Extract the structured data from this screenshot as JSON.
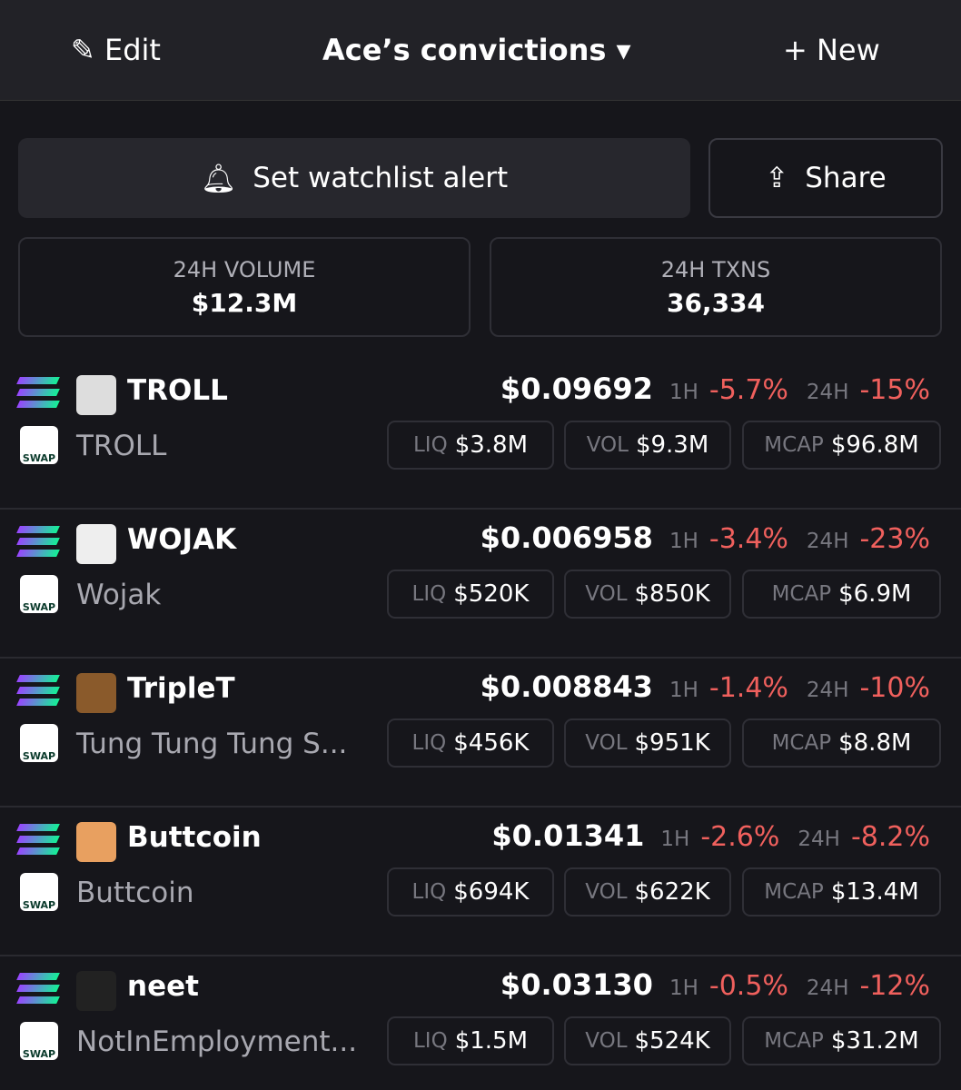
{
  "header": {
    "edit": "Edit",
    "title": "Ace’s convictions",
    "new": "New"
  },
  "actions": {
    "alert": "Set watchlist alert",
    "share": "Share"
  },
  "stats": [
    {
      "label": "24H VOLUME",
      "value": "$12.3M"
    },
    {
      "label": "24H TXNS",
      "value": "36,334"
    }
  ],
  "tokens": [
    {
      "symbol": "TROLL",
      "name": "TROLL",
      "badge": "SWAP",
      "price": "$0.09692",
      "h1_label": "1H",
      "h1": "-5.7%",
      "h24_label": "24H",
      "h24": "-15%",
      "liq_label": "LIQ",
      "liq": "$3.8M",
      "vol_label": "VOL",
      "vol": "$9.3M",
      "mcap_label": "MCAP",
      "mcap": "$96.8M"
    },
    {
      "symbol": "WOJAK",
      "name": "Wojak",
      "badge": "SWAP",
      "price": "$0.006958",
      "h1_label": "1H",
      "h1": "-3.4%",
      "h24_label": "24H",
      "h24": "-23%",
      "liq_label": "LIQ",
      "liq": "$520K",
      "vol_label": "VOL",
      "vol": "$850K",
      "mcap_label": "MCAP",
      "mcap": "$6.9M"
    },
    {
      "symbol": "TripleT",
      "name": "Tung Tung Tung S...",
      "badge": "SWAP",
      "price": "$0.008843",
      "h1_label": "1H",
      "h1": "-1.4%",
      "h24_label": "24H",
      "h24": "-10%",
      "liq_label": "LIQ",
      "liq": "$456K",
      "vol_label": "VOL",
      "vol": "$951K",
      "mcap_label": "MCAP",
      "mcap": "$8.8M"
    },
    {
      "symbol": "Buttcoin",
      "name": "Buttcoin",
      "badge": "SWAP",
      "price": "$0.01341",
      "h1_label": "1H",
      "h1": "-2.6%",
      "h24_label": "24H",
      "h24": "-8.2%",
      "liq_label": "LIQ",
      "liq": "$694K",
      "vol_label": "VOL",
      "vol": "$622K",
      "mcap_label": "MCAP",
      "mcap": "$13.4M"
    },
    {
      "symbol": "neet",
      "name": "NotInEmployment...",
      "badge": "SWAP",
      "price": "$0.03130",
      "h1_label": "1H",
      "h1": "-0.5%",
      "h24_label": "24H",
      "h24": "-12%",
      "liq_label": "LIQ",
      "liq": "$1.5M",
      "vol_label": "VOL",
      "vol": "$524K",
      "mcap_label": "MCAP",
      "mcap": "$31.2M"
    }
  ]
}
